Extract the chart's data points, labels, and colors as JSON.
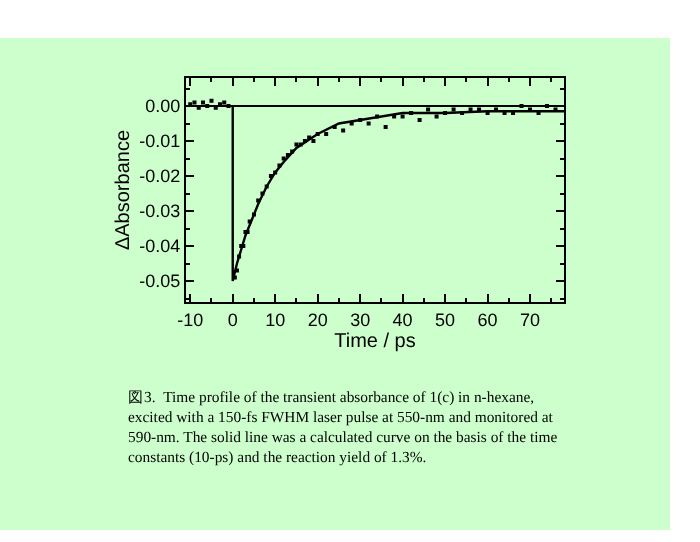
{
  "chart_data": {
    "type": "scatter",
    "xlabel": "Time / ps",
    "ylabel": "ΔAbsorbance",
    "xlim": [
      -11,
      78
    ],
    "xticks": [
      -10,
      0,
      10,
      20,
      30,
      40,
      50,
      60,
      70
    ],
    "ylim": [
      -0.056,
      0.008
    ],
    "yticks": [
      {
        "value": 0,
        "label": "0.00"
      },
      {
        "value": -0.01,
        "label": "-0.01"
      },
      {
        "value": -0.02,
        "label": "-0.02"
      },
      {
        "value": -0.03,
        "label": "-0.03"
      },
      {
        "value": -0.04,
        "label": "-0.04"
      },
      {
        "value": -0.05,
        "label": "-0.05"
      }
    ],
    "grid": false,
    "legend": false,
    "ref_lines": [
      {
        "axis": "y",
        "value": 0,
        "color": "#000000"
      }
    ],
    "series": [
      {
        "marker": "square",
        "color": "#000000",
        "x": [
          -10,
          -9,
          -8,
          -7,
          -6,
          -5,
          -4,
          -3,
          -2,
          -1,
          0.5,
          1,
          1.5,
          2,
          2.5,
          3,
          3.5,
          4,
          5,
          6,
          7,
          8,
          9,
          10,
          11,
          12,
          13,
          14,
          15,
          16,
          17,
          18,
          19,
          20,
          22,
          24,
          26,
          28,
          30,
          32,
          34,
          36,
          38,
          40,
          42,
          44,
          46,
          48,
          50,
          52,
          54,
          56,
          58,
          60,
          62,
          64,
          66,
          68,
          70,
          72,
          74,
          76
        ],
        "values": [
          0.0005,
          0.001,
          -0.0005,
          0.001,
          0.0,
          0.0015,
          -0.0005,
          0.0005,
          0.001,
          0.0,
          -0.049,
          -0.047,
          -0.043,
          -0.04,
          -0.04,
          -0.036,
          -0.036,
          -0.033,
          -0.031,
          -0.027,
          -0.025,
          -0.023,
          -0.02,
          -0.019,
          -0.017,
          -0.015,
          -0.014,
          -0.013,
          -0.011,
          -0.011,
          -0.01,
          -0.009,
          -0.01,
          -0.008,
          -0.008,
          -0.006,
          -0.007,
          -0.005,
          -0.004,
          -0.005,
          -0.003,
          -0.006,
          -0.003,
          -0.003,
          -0.002,
          -0.004,
          -0.001,
          -0.003,
          -0.002,
          -0.001,
          -0.002,
          -0.001,
          -0.001,
          -0.002,
          -0.001,
          -0.002,
          -0.002,
          0.0,
          -0.001,
          -0.002,
          0.0,
          -0.001
        ]
      },
      {
        "type": "line",
        "line_style": "solid",
        "color": "#000000",
        "x": [
          0,
          0,
          1,
          2,
          3,
          4,
          5,
          6,
          8,
          10,
          12,
          15,
          20,
          25,
          30,
          40,
          50,
          60,
          78
        ],
        "values": [
          0,
          -0.05,
          -0.045,
          -0.041,
          -0.037,
          -0.034,
          -0.031,
          -0.028,
          -0.023,
          -0.019,
          -0.016,
          -0.012,
          -0.008,
          -0.005,
          -0.004,
          -0.002,
          -0.002,
          -0.0015,
          -0.0015
        ]
      }
    ],
    "annotations": [
      "図3.  Time profile of the transient absorbance of 1(c) in n-hexane,\nexcited with a 150-fs FWHM laser pulse at 550-nm and monitored at\n590-nm. The solid line was a calculated curve on the basis of the time\nconstants (10-ps) and the reaction yield of 1.3%."
    ]
  }
}
